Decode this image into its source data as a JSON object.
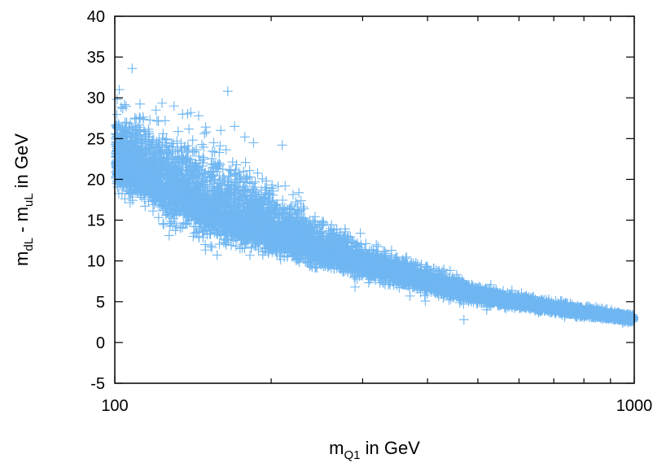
{
  "chart_data": {
    "type": "scatter",
    "title": "",
    "xlabel": {
      "base": "m",
      "sub": "Q1",
      "rest": " in GeV"
    },
    "ylabel": {
      "base1": "m",
      "sub1": "dL",
      "mid": " - m",
      "sub2": "uL",
      "rest": " in GeV"
    },
    "x_scale": "log",
    "xlim": [
      100,
      1000
    ],
    "ylim": [
      -5,
      40
    ],
    "x_ticks": [
      100,
      1000
    ],
    "x_tick_labels": [
      "100",
      "1000"
    ],
    "y_ticks": [
      -5,
      0,
      5,
      10,
      15,
      20,
      25,
      30,
      35,
      40
    ],
    "y_tick_labels": [
      "-5",
      "0",
      "5",
      "10",
      "15",
      "20",
      "25",
      "30",
      "35",
      "40"
    ],
    "grid": false,
    "legend": "none",
    "marker": "plus",
    "marker_color": "#6fb6f2",
    "band_model": {
      "center_points": [
        [
          100,
          22.5
        ],
        [
          150,
          16.5
        ],
        [
          200,
          13.5
        ],
        [
          300,
          9.5
        ],
        [
          500,
          5.8
        ],
        [
          700,
          4.2
        ],
        [
          1000,
          2.9
        ]
      ],
      "upper_spread_points": [
        [
          100,
          4.5
        ],
        [
          150,
          5.5
        ],
        [
          200,
          4.0
        ],
        [
          300,
          2.0
        ],
        [
          500,
          0.9
        ],
        [
          700,
          0.6
        ],
        [
          1000,
          0.4
        ]
      ],
      "lower_spread_points": [
        [
          100,
          3.0
        ],
        [
          150,
          3.0
        ],
        [
          200,
          2.0
        ],
        [
          300,
          1.2
        ],
        [
          500,
          0.8
        ],
        [
          700,
          0.5
        ],
        [
          1000,
          0.4
        ]
      ],
      "num_points": 9000
    },
    "outliers": [
      [
        108,
        33.6
      ],
      [
        102,
        31.0
      ],
      [
        101,
        29.8
      ],
      [
        120,
        28.5
      ],
      [
        130,
        29.0
      ],
      [
        135,
        28.0
      ],
      [
        140,
        28.2
      ],
      [
        145,
        27.8
      ],
      [
        165,
        30.8
      ],
      [
        170,
        26.5
      ],
      [
        185,
        24.5
      ],
      [
        210,
        24.2
      ],
      [
        160,
        26.0
      ],
      [
        178,
        25.2
      ],
      [
        125,
        27.2
      ],
      [
        104,
        26.0
      ],
      [
        150,
        25.8
      ],
      [
        155,
        24.5
      ],
      [
        112,
        24.8
      ],
      [
        290,
        6.8
      ],
      [
        370,
        5.7
      ],
      [
        440,
        5.2
      ],
      [
        470,
        2.8
      ],
      [
        520,
        4.0
      ],
      [
        990,
        2.9
      ]
    ]
  }
}
